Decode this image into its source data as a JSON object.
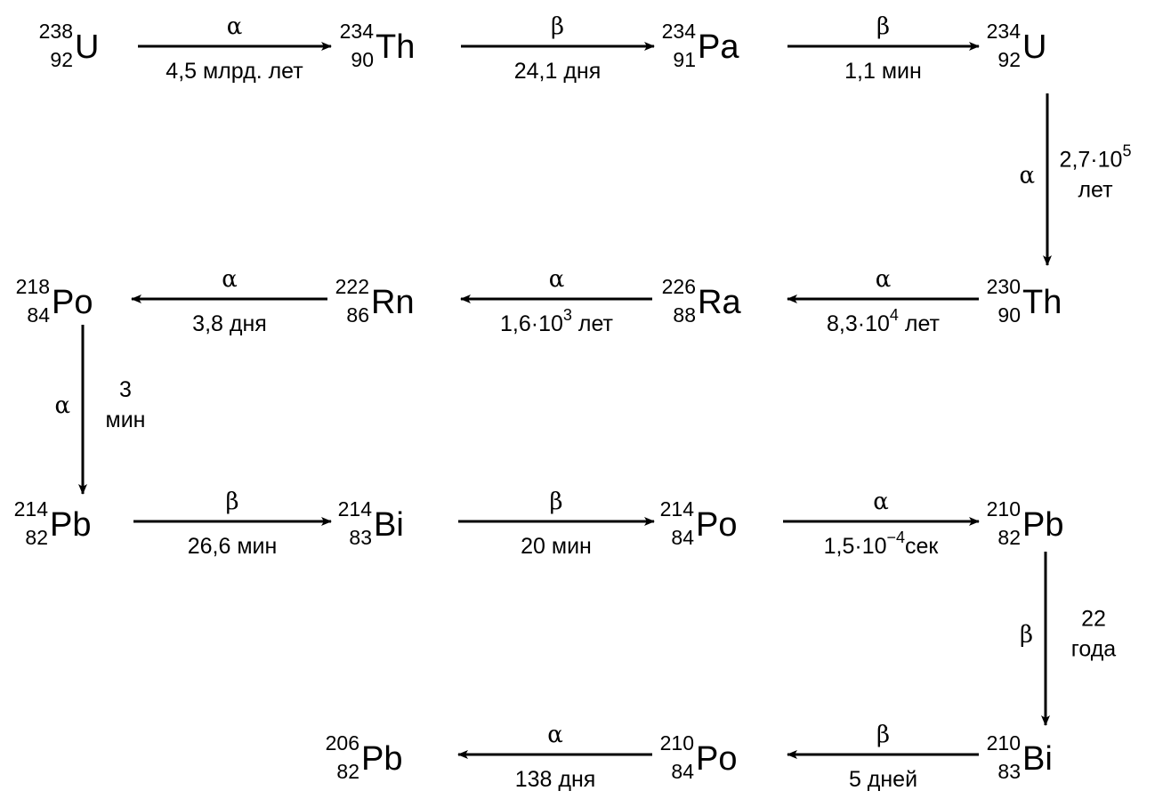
{
  "diagram": {
    "nuclides": [
      {
        "id": "u238",
        "symbol": "U",
        "mass": "238",
        "z": "92"
      },
      {
        "id": "th234",
        "symbol": "Th",
        "mass": "234",
        "z": "90"
      },
      {
        "id": "pa234",
        "symbol": "Pa",
        "mass": "234",
        "z": "91"
      },
      {
        "id": "u234",
        "symbol": "U",
        "mass": "234",
        "z": "92"
      },
      {
        "id": "th230",
        "symbol": "Th",
        "mass": "230",
        "z": "90"
      },
      {
        "id": "ra226",
        "symbol": "Ra",
        "mass": "226",
        "z": "88"
      },
      {
        "id": "rn222",
        "symbol": "Rn",
        "mass": "222",
        "z": "86"
      },
      {
        "id": "po218",
        "symbol": "Po",
        "mass": "218",
        "z": "84"
      },
      {
        "id": "pb214",
        "symbol": "Pb",
        "mass": "214",
        "z": "82"
      },
      {
        "id": "bi214",
        "symbol": "Bi",
        "mass": "214",
        "z": "83"
      },
      {
        "id": "po214",
        "symbol": "Po",
        "mass": "214",
        "z": "84"
      },
      {
        "id": "pb210",
        "symbol": "Pb",
        "mass": "210",
        "z": "82"
      },
      {
        "id": "bi210",
        "symbol": "Bi",
        "mass": "210",
        "z": "83"
      },
      {
        "id": "po210",
        "symbol": "Po",
        "mass": "210",
        "z": "84"
      },
      {
        "id": "pb206",
        "symbol": "Pb",
        "mass": "206",
        "z": "82"
      }
    ],
    "decays": [
      {
        "id": "d1",
        "from": "u238",
        "to": "th234",
        "type": "α",
        "label": [
          "4,5 млрд. лет"
        ]
      },
      {
        "id": "d2",
        "from": "th234",
        "to": "pa234",
        "type": "β",
        "label": [
          "24,1 дня"
        ]
      },
      {
        "id": "d3",
        "from": "pa234",
        "to": "u234",
        "type": "β",
        "label": [
          "1,1 мин"
        ]
      },
      {
        "id": "d4",
        "from": "u234",
        "to": "th230",
        "type": "α",
        "label": [
          "2,7·10",
          "лет"
        ],
        "sup": "5"
      },
      {
        "id": "d5",
        "from": "th230",
        "to": "ra226",
        "type": "α",
        "label": [
          "8,3·10",
          " лет"
        ],
        "sup": "4"
      },
      {
        "id": "d6",
        "from": "ra226",
        "to": "rn222",
        "type": "α",
        "label": [
          "1,6·10",
          " лет"
        ],
        "sup": "3"
      },
      {
        "id": "d7",
        "from": "rn222",
        "to": "po218",
        "type": "α",
        "label": [
          "3,8 дня"
        ]
      },
      {
        "id": "d8",
        "from": "po218",
        "to": "pb214",
        "type": "α",
        "label": [
          "3",
          "мин"
        ]
      },
      {
        "id": "d9",
        "from": "pb214",
        "to": "bi214",
        "type": "β",
        "label": [
          "26,6 мин"
        ]
      },
      {
        "id": "d10",
        "from": "bi214",
        "to": "po214",
        "type": "β",
        "label": [
          "20 мин"
        ]
      },
      {
        "id": "d11",
        "from": "po214",
        "to": "pb210",
        "type": "α",
        "label": [
          "1,5·10",
          "сек"
        ],
        "sup": "−4"
      },
      {
        "id": "d12",
        "from": "pb210",
        "to": "bi210",
        "type": "β",
        "label": [
          "22",
          "года"
        ]
      },
      {
        "id": "d13",
        "from": "bi210",
        "to": "po210",
        "type": "β",
        "label": [
          "5 дней"
        ]
      },
      {
        "id": "d14",
        "from": "po210",
        "to": "pb206",
        "type": "α",
        "label": [
          "138 дня"
        ]
      }
    ]
  }
}
